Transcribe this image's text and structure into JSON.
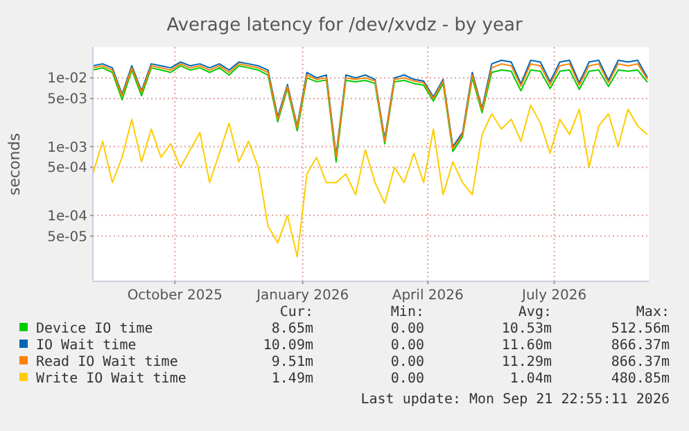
{
  "chart_data": {
    "type": "line",
    "title": "Average latency for /dev/xvdz - by year",
    "ylabel": "seconds",
    "log": "y",
    "grid": true,
    "legend": "bottom",
    "xlim": [
      "2025-08-03",
      "2026-09-07"
    ],
    "xticks": [
      {
        "value": "2025-10-01",
        "label": "October 2025"
      },
      {
        "value": "2026-01-01",
        "label": "January 2026"
      },
      {
        "value": "2026-04-01",
        "label": "April 2026"
      },
      {
        "value": "2026-07-01",
        "label": "July 2026"
      }
    ],
    "ylim": [
      1.1e-05,
      0.028
    ],
    "yticks": [
      {
        "value": 0.01,
        "label": "1e-02"
      },
      {
        "value": 0.005,
        "label": "5e-03"
      },
      {
        "value": 0.001,
        "label": "1e-03"
      },
      {
        "value": 0.0005,
        "label": "5e-04"
      },
      {
        "value": 0.0001,
        "label": "1e-04"
      },
      {
        "value": 5e-05,
        "label": "5e-05"
      }
    ],
    "x": [
      "2025-08-03",
      "2025-08-10",
      "2025-08-17",
      "2025-08-24",
      "2025-08-31",
      "2025-09-07",
      "2025-09-14",
      "2025-09-21",
      "2025-09-28",
      "2025-10-05",
      "2025-10-12",
      "2025-10-19",
      "2025-10-26",
      "2025-11-02",
      "2025-11-09",
      "2025-11-16",
      "2025-11-23",
      "2025-11-30",
      "2025-12-07",
      "2025-12-14",
      "2025-12-21",
      "2025-12-28",
      "2026-01-04",
      "2026-01-11",
      "2026-01-18",
      "2026-01-25",
      "2026-02-01",
      "2026-02-08",
      "2026-02-15",
      "2026-02-22",
      "2026-03-01",
      "2026-03-08",
      "2026-03-15",
      "2026-03-22",
      "2026-03-29",
      "2026-04-05",
      "2026-04-12",
      "2026-04-19",
      "2026-04-26",
      "2026-05-03",
      "2026-05-10",
      "2026-05-17",
      "2026-05-24",
      "2026-05-31",
      "2026-06-07",
      "2026-06-14",
      "2026-06-21",
      "2026-06-28",
      "2026-07-05",
      "2026-07-12",
      "2026-07-19",
      "2026-07-26",
      "2026-08-02",
      "2026-08-09",
      "2026-08-16",
      "2026-08-23",
      "2026-08-30",
      "2026-09-06"
    ],
    "series": [
      {
        "name": "Device IO time",
        "color": "#00cc00",
        "values": [
          0.013,
          0.014,
          0.012,
          0.0048,
          0.013,
          0.0055,
          0.014,
          0.013,
          0.012,
          0.015,
          0.013,
          0.014,
          0.012,
          0.014,
          0.011,
          0.015,
          0.014,
          0.013,
          0.011,
          0.0023,
          0.007,
          0.0017,
          0.01,
          0.0088,
          0.0093,
          0.0006,
          0.0092,
          0.0088,
          0.0092,
          0.0083,
          0.0011,
          0.0088,
          0.0092,
          0.0083,
          0.0078,
          0.0046,
          0.0083,
          0.00085,
          0.0014,
          0.01,
          0.0031,
          0.012,
          0.013,
          0.0125,
          0.0065,
          0.013,
          0.0125,
          0.007,
          0.0125,
          0.013,
          0.0068,
          0.0125,
          0.013,
          0.0075,
          0.013,
          0.0125,
          0.013,
          0.00865
        ]
      },
      {
        "name": "IO Wait time",
        "color": "#0066b3",
        "values": [
          0.015,
          0.016,
          0.014,
          0.0058,
          0.015,
          0.0065,
          0.016,
          0.015,
          0.014,
          0.017,
          0.015,
          0.016,
          0.014,
          0.016,
          0.013,
          0.017,
          0.016,
          0.015,
          0.013,
          0.0027,
          0.008,
          0.002,
          0.012,
          0.01,
          0.011,
          0.00075,
          0.011,
          0.01,
          0.011,
          0.0095,
          0.0013,
          0.01,
          0.011,
          0.0095,
          0.009,
          0.0053,
          0.0095,
          0.001,
          0.0016,
          0.012,
          0.0036,
          0.016,
          0.018,
          0.017,
          0.0082,
          0.018,
          0.017,
          0.0088,
          0.017,
          0.018,
          0.0085,
          0.017,
          0.018,
          0.0092,
          0.018,
          0.017,
          0.018,
          0.0101
        ]
      },
      {
        "name": "Read IO Wait time",
        "color": "#ff8000",
        "values": [
          0.014,
          0.015,
          0.013,
          0.0055,
          0.014,
          0.0062,
          0.015,
          0.014,
          0.013,
          0.016,
          0.014,
          0.015,
          0.013,
          0.015,
          0.012,
          0.016,
          0.015,
          0.014,
          0.012,
          0.0025,
          0.0075,
          0.0019,
          0.011,
          0.0095,
          0.01,
          0.0007,
          0.01,
          0.0095,
          0.01,
          0.009,
          0.0012,
          0.0095,
          0.01,
          0.009,
          0.0085,
          0.005,
          0.009,
          0.00093,
          0.0015,
          0.011,
          0.0034,
          0.014,
          0.016,
          0.015,
          0.0076,
          0.016,
          0.015,
          0.008,
          0.015,
          0.016,
          0.0078,
          0.015,
          0.016,
          0.0085,
          0.016,
          0.015,
          0.016,
          0.0095
        ]
      },
      {
        "name": "Write IO Wait time",
        "color": "#ffcc00",
        "values": [
          0.0004,
          0.0012,
          0.0003,
          0.0007,
          0.0025,
          0.0006,
          0.0018,
          0.0007,
          0.0011,
          0.0005,
          0.0009,
          0.0016,
          0.0003,
          0.0008,
          0.0022,
          0.0006,
          0.0012,
          0.0005,
          7e-05,
          4e-05,
          0.0001,
          2.5e-05,
          0.0004,
          0.0007,
          0.0003,
          0.0003,
          0.0004,
          0.0002,
          0.0009,
          0.0003,
          0.00015,
          0.0005,
          0.0003,
          0.0008,
          0.0003,
          0.0018,
          0.0002,
          0.0006,
          0.0003,
          0.0002,
          0.0015,
          0.003,
          0.0018,
          0.0025,
          0.0012,
          0.004,
          0.0022,
          0.0008,
          0.0025,
          0.0015,
          0.0035,
          0.0005,
          0.002,
          0.003,
          0.001,
          0.0035,
          0.002,
          0.00149
        ]
      }
    ],
    "annotations": [
      "Cur:",
      "Min:",
      "Avg:",
      "Max:",
      "8.65m",
      "0.00",
      "10.53m",
      "512.56m",
      "10.09m",
      "0.00",
      "11.60m",
      "866.37m",
      "9.51m",
      "0.00",
      "11.29m",
      "866.37m",
      "1.49m",
      "0.00",
      "1.04m",
      "480.85m",
      "Last update: Mon Sep 21 22:55:11 2026"
    ]
  }
}
